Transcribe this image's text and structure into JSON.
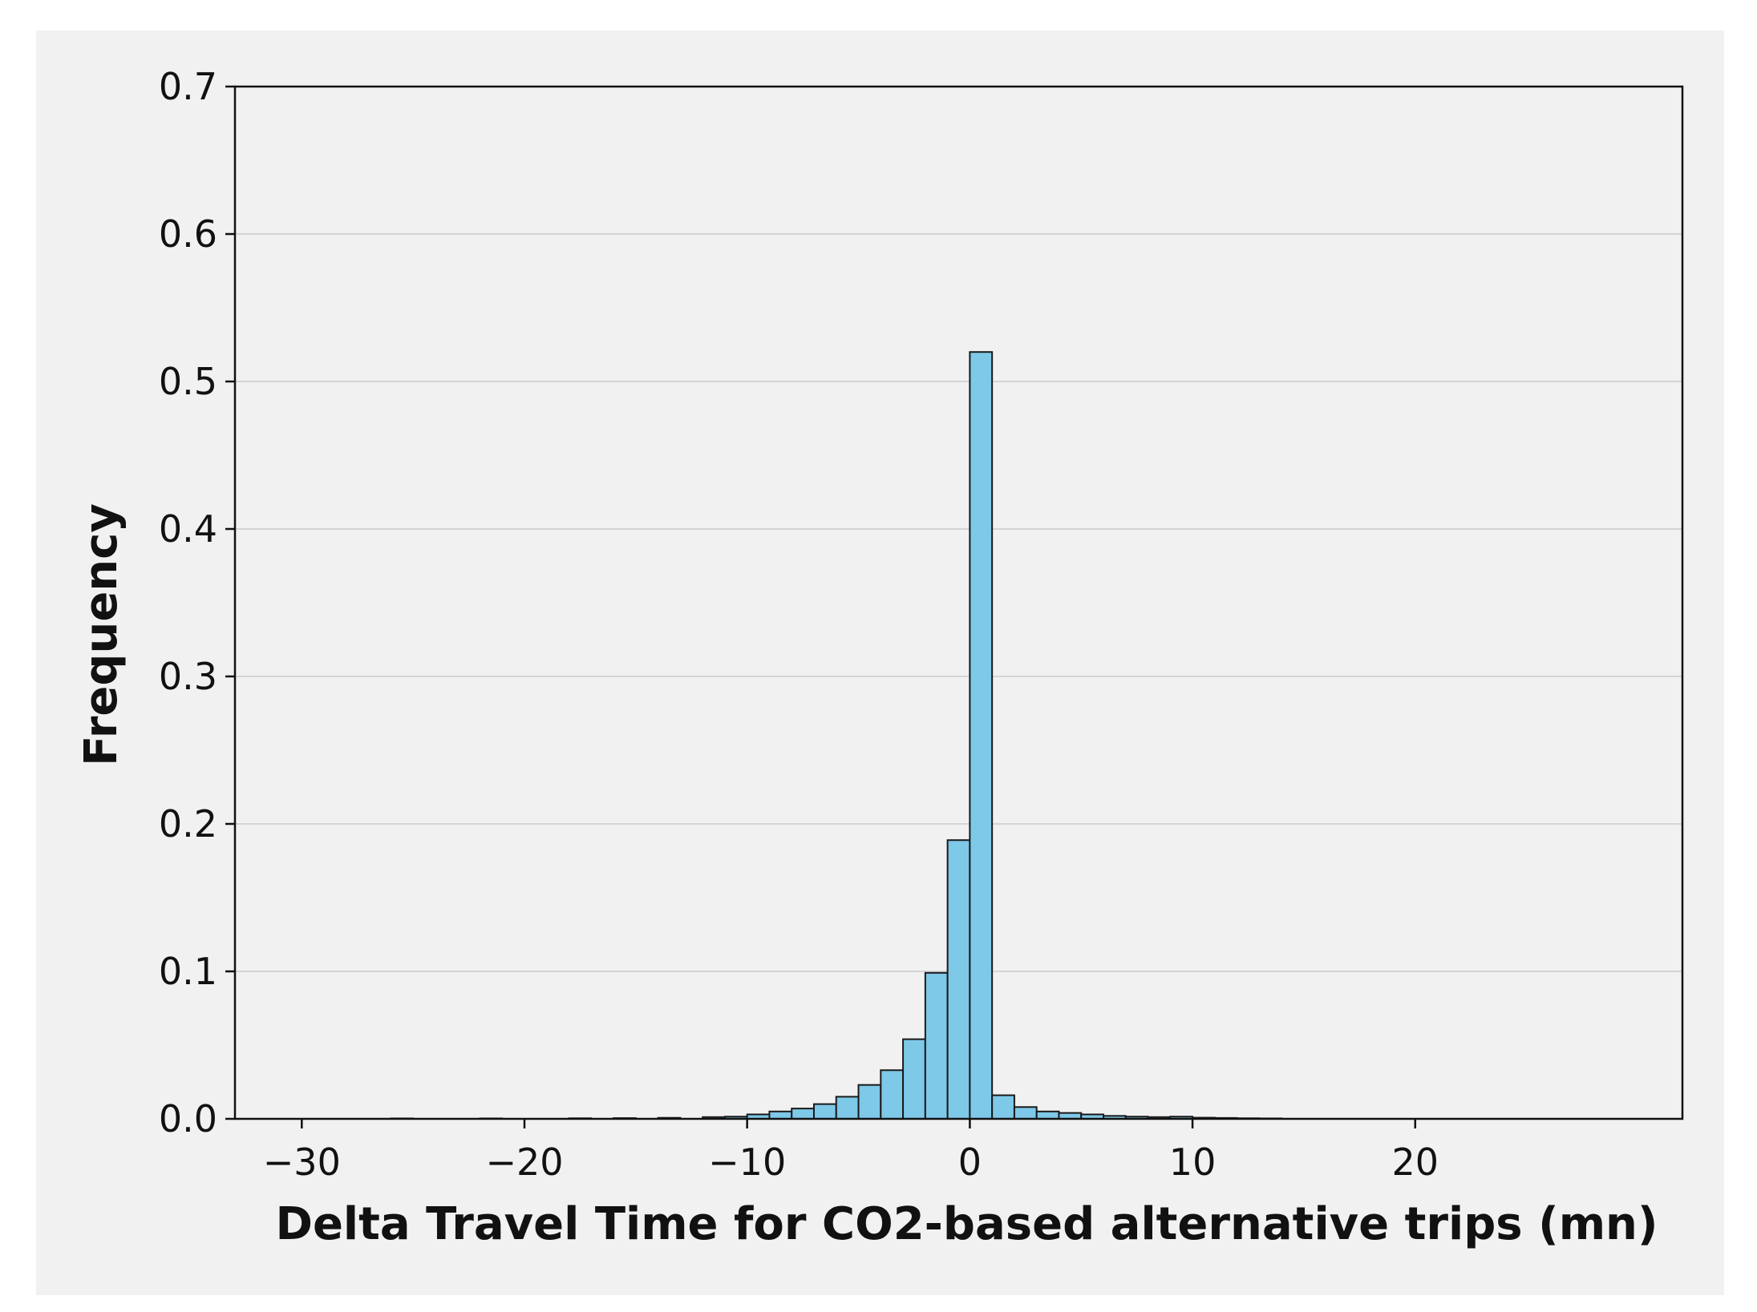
{
  "chart_data": {
    "type": "bar",
    "title": "",
    "xlabel": "Delta Travel Time for CO2-based alternative trips (mn)",
    "ylabel": "Frequency",
    "xlim": [
      -33,
      32
    ],
    "ylim": [
      0,
      0.7
    ],
    "x_ticks": [
      {
        "value": -30,
        "label": "−30"
      },
      {
        "value": -20,
        "label": "−20"
      },
      {
        "value": -10,
        "label": "−10"
      },
      {
        "value": 0,
        "label": "0"
      },
      {
        "value": 10,
        "label": "10"
      },
      {
        "value": 20,
        "label": "20"
      }
    ],
    "y_ticks": [
      {
        "value": 0.0,
        "label": "0.0"
      },
      {
        "value": 0.1,
        "label": "0.1"
      },
      {
        "value": 0.2,
        "label": "0.2"
      },
      {
        "value": 0.3,
        "label": "0.3"
      },
      {
        "value": 0.4,
        "label": "0.4"
      },
      {
        "value": 0.5,
        "label": "0.5"
      },
      {
        "value": 0.6,
        "label": "0.6"
      },
      {
        "value": 0.7,
        "label": "0.7"
      }
    ],
    "grid": "horizontal",
    "bar_color": "#7ec8e8",
    "bar_edge_color": "#1a1a1a",
    "bins": [
      {
        "x0": -26,
        "x1": -25,
        "value": 0.0003
      },
      {
        "x0": -22,
        "x1": -21,
        "value": 0.0003
      },
      {
        "x0": -18,
        "x1": -17,
        "value": 0.0004
      },
      {
        "x0": -16,
        "x1": -15,
        "value": 0.0005
      },
      {
        "x0": -14,
        "x1": -13,
        "value": 0.0007
      },
      {
        "x0": -12,
        "x1": -11,
        "value": 0.0012
      },
      {
        "x0": -11,
        "x1": -10,
        "value": 0.0015
      },
      {
        "x0": -10,
        "x1": -9,
        "value": 0.003
      },
      {
        "x0": -9,
        "x1": -8,
        "value": 0.005
      },
      {
        "x0": -8,
        "x1": -7,
        "value": 0.007
      },
      {
        "x0": -7,
        "x1": -6,
        "value": 0.01
      },
      {
        "x0": -6,
        "x1": -5,
        "value": 0.015
      },
      {
        "x0": -5,
        "x1": -4,
        "value": 0.023
      },
      {
        "x0": -4,
        "x1": -3,
        "value": 0.033
      },
      {
        "x0": -3,
        "x1": -2,
        "value": 0.054
      },
      {
        "x0": -2,
        "x1": -1,
        "value": 0.099
      },
      {
        "x0": -1,
        "x1": 0,
        "value": 0.189
      },
      {
        "x0": 0,
        "x1": 1,
        "value": 0.52
      },
      {
        "x0": 1,
        "x1": 2,
        "value": 0.016
      },
      {
        "x0": 2,
        "x1": 3,
        "value": 0.008
      },
      {
        "x0": 3,
        "x1": 4,
        "value": 0.005
      },
      {
        "x0": 4,
        "x1": 5,
        "value": 0.004
      },
      {
        "x0": 5,
        "x1": 6,
        "value": 0.003
      },
      {
        "x0": 6,
        "x1": 7,
        "value": 0.002
      },
      {
        "x0": 7,
        "x1": 8,
        "value": 0.0015
      },
      {
        "x0": 8,
        "x1": 9,
        "value": 0.0012
      },
      {
        "x0": 9,
        "x1": 10,
        "value": 0.0015
      },
      {
        "x0": 10,
        "x1": 11,
        "value": 0.0008
      },
      {
        "x0": 11,
        "x1": 12,
        "value": 0.0006
      },
      {
        "x0": 12,
        "x1": 13,
        "value": 0.0004
      },
      {
        "x0": 13,
        "x1": 14,
        "value": 0.0003
      }
    ]
  }
}
